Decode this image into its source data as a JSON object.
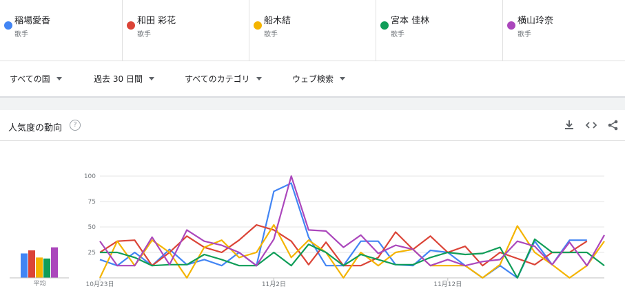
{
  "terms": [
    {
      "name": "稲場愛香",
      "category": "歌手",
      "color": "#4285f4"
    },
    {
      "name": "和田 彩花",
      "category": "歌手",
      "color": "#db4437"
    },
    {
      "name": "船木結",
      "category": "歌手",
      "color": "#f4b400"
    },
    {
      "name": "宮本 佳林",
      "category": "歌手",
      "color": "#0f9d58"
    },
    {
      "name": "横山玲奈",
      "category": "歌手",
      "color": "#ab47bc"
    }
  ],
  "filters": {
    "region": "すべての国",
    "period": "過去 30 日間",
    "category": "すべてのカテゴリ",
    "search_type": "ウェブ検索"
  },
  "card": {
    "title": "人気度の動向",
    "help_glyph": "?",
    "download_icon": "download-icon",
    "embed_icon": "embed-icon",
    "share_icon": "share-icon"
  },
  "chart_data": {
    "type": "line",
    "title": "",
    "xlabel": "",
    "ylabel": "",
    "ylim": [
      0,
      100
    ],
    "y_ticks": [
      25,
      50,
      75,
      100
    ],
    "x_tick_labels": [
      {
        "index": 0,
        "label": "10月23日"
      },
      {
        "index": 10,
        "label": "11月2日"
      },
      {
        "index": 20,
        "label": "11月12日"
      }
    ],
    "average_label": "平均",
    "averages": [
      24,
      27,
      20,
      19,
      30
    ],
    "x": [
      "10/23",
      "10/24",
      "10/25",
      "10/26",
      "10/27",
      "10/28",
      "10/29",
      "10/30",
      "10/31",
      "11/1",
      "11/2",
      "11/3",
      "11/4",
      "11/5",
      "11/6",
      "11/7",
      "11/8",
      "11/9",
      "11/10",
      "11/11",
      "11/12",
      "11/13",
      "11/14",
      "11/15",
      "11/16",
      "11/17",
      "11/18",
      "11/19",
      "11/20",
      "11/21"
    ],
    "series": [
      {
        "name": "稲場愛香",
        "color": "#4285f4",
        "values": [
          18,
          12,
          25,
          12,
          28,
          13,
          18,
          12,
          25,
          12,
          85,
          93,
          40,
          12,
          12,
          36,
          36,
          13,
          12,
          27,
          25,
          12,
          0,
          12,
          0,
          36,
          13,
          37,
          37,
          null
        ]
      },
      {
        "name": "和田 彩花",
        "color": "#db4437",
        "values": [
          25,
          36,
          37,
          12,
          25,
          41,
          30,
          25,
          37,
          52,
          47,
          36,
          13,
          35,
          12,
          12,
          20,
          45,
          28,
          41,
          25,
          31,
          12,
          25,
          19,
          13,
          25,
          25,
          36,
          null
        ]
      },
      {
        "name": "船木結",
        "color": "#f4b400",
        "values": [
          0,
          36,
          12,
          37,
          25,
          0,
          30,
          37,
          20,
          25,
          52,
          20,
          37,
          25,
          0,
          25,
          12,
          25,
          28,
          12,
          12,
          12,
          0,
          13,
          51,
          25,
          13,
          0,
          12,
          36
        ]
      },
      {
        "name": "宮本 佳林",
        "color": "#0f9d58",
        "values": [
          25,
          25,
          20,
          12,
          13,
          13,
          23,
          18,
          12,
          12,
          25,
          12,
          33,
          25,
          12,
          23,
          18,
          13,
          13,
          20,
          25,
          23,
          24,
          30,
          0,
          38,
          25,
          25,
          25,
          12
        ]
      },
      {
        "name": "横山玲奈",
        "color": "#ab47bc",
        "values": [
          36,
          12,
          12,
          40,
          13,
          47,
          36,
          32,
          25,
          12,
          38,
          100,
          47,
          46,
          30,
          42,
          24,
          32,
          28,
          12,
          18,
          12,
          16,
          18,
          36,
          31,
          13,
          35,
          12,
          42
        ]
      }
    ]
  }
}
